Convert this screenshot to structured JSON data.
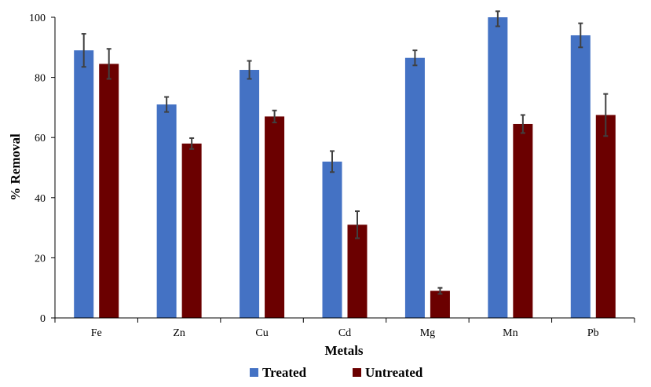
{
  "chart_data": {
    "type": "bar",
    "title": "",
    "xlabel": "Metals",
    "ylabel": "% Removal",
    "ylim": [
      0,
      100
    ],
    "yticks": [
      0,
      20,
      40,
      60,
      80,
      100
    ],
    "categories": [
      "Fe",
      "Zn",
      "Cu",
      "Cd",
      "Mg",
      "Mn",
      "Pb"
    ],
    "series": [
      {
        "name": "Treated",
        "color": "#4472C4",
        "values": [
          89,
          71,
          82.5,
          52,
          86.5,
          100,
          94
        ],
        "errors": [
          5.5,
          2.5,
          3,
          3.5,
          2.5,
          3,
          4
        ]
      },
      {
        "name": "Untreated",
        "color": "#6B0000",
        "values": [
          84.5,
          58,
          67,
          31,
          9,
          64.5,
          67.5
        ],
        "errors": [
          5,
          1.8,
          2,
          4.5,
          1,
          3,
          7
        ]
      }
    ],
    "grid": false,
    "legend_position": "bottom-center"
  }
}
